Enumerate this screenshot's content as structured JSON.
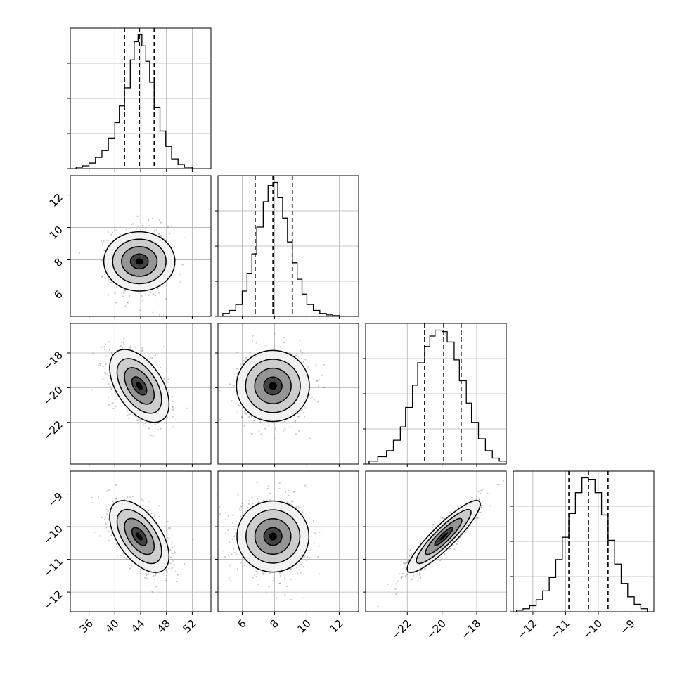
{
  "chart_data": {
    "type": "corner",
    "title": "",
    "grid": true,
    "colors": {
      "line": "#000000",
      "grid": "#b0b0b0",
      "scatter": "#000000",
      "background": "#ffffff"
    },
    "parameters": [
      {
        "label": "",
        "range": [
          33.1,
          54.9
        ],
        "ticks": [
          36,
          40,
          44,
          48,
          52
        ],
        "tick_labels": [
          "36",
          "40",
          "44",
          "48",
          "52"
        ],
        "quantiles": [
          41.5,
          43.8,
          46.1
        ],
        "histogram": {
          "edges": [
            34.0,
            35.0,
            36.0,
            37.0,
            38.0,
            39.0,
            40.0,
            40.7,
            41.5,
            42.4,
            43.0,
            43.6,
            44.2,
            44.8,
            45.4,
            46.1,
            47.0,
            47.9,
            48.8,
            49.8,
            50.8,
            52.0
          ],
          "counts": [
            0.01,
            0.02,
            0.04,
            0.08,
            0.13,
            0.22,
            0.33,
            0.45,
            0.58,
            0.78,
            0.91,
            0.96,
            0.88,
            0.77,
            0.62,
            0.44,
            0.27,
            0.16,
            0.07,
            0.03,
            0.01
          ]
        }
      },
      {
        "label": "",
        "range": [
          4.5,
          13.2
        ],
        "ticks": [
          6,
          8,
          10,
          12
        ],
        "tick_labels": [
          "6",
          "8",
          "10",
          "12"
        ],
        "quantiles": [
          6.8,
          7.9,
          9.1
        ],
        "histogram": {
          "edges": [
            4.8,
            5.2,
            5.6,
            6.0,
            6.3,
            6.6,
            6.9,
            7.3,
            7.6,
            7.9,
            8.2,
            8.5,
            8.8,
            9.1,
            9.4,
            9.7,
            10.0,
            10.4,
            10.8,
            11.2,
            11.6,
            12.0
          ],
          "counts": [
            0.02,
            0.04,
            0.08,
            0.17,
            0.29,
            0.42,
            0.6,
            0.77,
            0.88,
            0.9,
            0.8,
            0.66,
            0.5,
            0.36,
            0.25,
            0.15,
            0.08,
            0.04,
            0.02,
            0.01,
            0.005
          ]
        }
      },
      {
        "label": "",
        "range": [
          -24.4,
          -16.3
        ],
        "ticks": [
          -22,
          -20,
          -18
        ],
        "tick_labels": [
          "−22",
          "−20",
          "−18"
        ],
        "quantiles": [
          -21.0,
          -19.9,
          -18.9
        ],
        "histogram": {
          "edges": [
            -24.2,
            -23.7,
            -23.2,
            -22.8,
            -22.4,
            -22.1,
            -21.7,
            -21.4,
            -21.0,
            -20.7,
            -20.4,
            -20.0,
            -19.7,
            -19.3,
            -19.0,
            -18.6,
            -18.3,
            -17.9,
            -17.5,
            -17.1,
            -16.7,
            -16.3
          ],
          "counts": [
            0.02,
            0.05,
            0.09,
            0.16,
            0.25,
            0.38,
            0.53,
            0.68,
            0.79,
            0.86,
            0.9,
            0.89,
            0.82,
            0.7,
            0.56,
            0.41,
            0.28,
            0.17,
            0.09,
            0.04,
            0.02
          ]
        }
      },
      {
        "label": "",
        "range": [
          -12.6,
          -8.3
        ],
        "ticks": [
          -12,
          -11,
          -10,
          -9
        ],
        "tick_labels": [
          "−12",
          "−11",
          "−10",
          "−9"
        ],
        "quantiles": [
          -10.9,
          -10.3,
          -9.7
        ],
        "histogram": {
          "edges": [
            -12.5,
            -12.3,
            -12.1,
            -11.9,
            -11.7,
            -11.5,
            -11.3,
            -11.1,
            -10.9,
            -10.7,
            -10.5,
            -10.3,
            -10.1,
            -9.9,
            -9.7,
            -9.5,
            -9.3,
            -9.1,
            -8.9,
            -8.7,
            -8.5
          ],
          "counts": [
            0.01,
            0.02,
            0.04,
            0.08,
            0.14,
            0.23,
            0.35,
            0.5,
            0.66,
            0.8,
            0.9,
            0.89,
            0.8,
            0.65,
            0.48,
            0.32,
            0.19,
            0.1,
            0.05,
            0.02
          ]
        }
      }
    ],
    "pairs": [
      {
        "x": 0,
        "y": 1,
        "mean": [
          43.8,
          7.9
        ],
        "sd": [
          2.3,
          1.1
        ],
        "corr": 0.0
      },
      {
        "x": 0,
        "y": 2,
        "mean": [
          43.8,
          -19.9
        ],
        "sd": [
          2.3,
          1.05
        ],
        "corr": -0.5
      },
      {
        "x": 1,
        "y": 2,
        "mean": [
          7.9,
          -19.9
        ],
        "sd": [
          1.1,
          1.05
        ],
        "corr": 0.0
      },
      {
        "x": 0,
        "y": 3,
        "mean": [
          43.8,
          -10.3
        ],
        "sd": [
          2.3,
          0.55
        ],
        "corr": -0.55
      },
      {
        "x": 1,
        "y": 3,
        "mean": [
          7.9,
          -10.3
        ],
        "sd": [
          1.1,
          0.55
        ],
        "corr": 0.0
      },
      {
        "x": 2,
        "y": 3,
        "mean": [
          -19.9,
          -10.3
        ],
        "sd": [
          1.05,
          0.55
        ],
        "corr": 0.9
      }
    ],
    "contour_levels_sigma": [
      0.5,
      1.0,
      1.5,
      2.0
    ]
  }
}
